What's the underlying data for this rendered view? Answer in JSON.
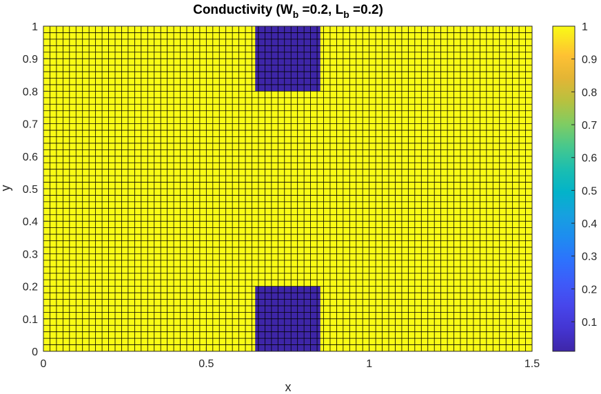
{
  "chart_data": {
    "type": "heatmap",
    "title": {
      "prefix": "Conductivity (W",
      "sub1": "b",
      "mid": " =0.2, L",
      "sub2": "b",
      "suffix": " =0.2)"
    },
    "xlabel": "x",
    "ylabel": "y",
    "xlim": [
      0,
      1.5
    ],
    "ylim": [
      0,
      1
    ],
    "xticks": [
      0,
      0.5,
      1,
      1.5
    ],
    "xtick_labels": [
      "0",
      "0.5",
      "1",
      "1.5"
    ],
    "yticks": [
      0,
      0.1,
      0.2,
      0.3,
      0.4,
      0.5,
      0.6,
      0.7,
      0.8,
      0.9,
      1
    ],
    "ytick_labels": [
      "0",
      "0.1",
      "0.2",
      "0.3",
      "0.4",
      "0.5",
      "0.6",
      "0.7",
      "0.8",
      "0.9",
      "1"
    ],
    "grid": {
      "nx": 75,
      "ny": 50
    },
    "background_value": 1,
    "regions": [
      {
        "x_range": [
          0.65,
          0.85
        ],
        "y_range": [
          0.8,
          1.0
        ],
        "value": 0.01
      },
      {
        "x_range": [
          0.65,
          0.85
        ],
        "y_range": [
          0.0,
          0.2
        ],
        "value": 0.01
      }
    ],
    "colorbar": {
      "range": [
        0.01,
        1
      ],
      "ticks": [
        0.1,
        0.2,
        0.3,
        0.4,
        0.5,
        0.6,
        0.7,
        0.8,
        0.9,
        1
      ],
      "tick_labels": [
        "0.1",
        "0.2",
        "0.3",
        "0.4",
        "0.5",
        "0.6",
        "0.7",
        "0.8",
        "0.9",
        "1"
      ],
      "colormap": "parula",
      "colors": {
        "low": "#3e26a8",
        "high": "#f9fb15"
      }
    }
  }
}
